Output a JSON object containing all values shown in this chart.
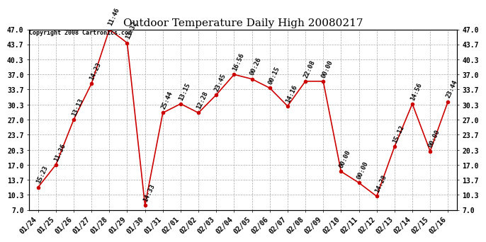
{
  "title": "Outdoor Temperature Daily High 20080217",
  "copyright": "Copyright 2008 Cartronics.com",
  "x_labels": [
    "01/24",
    "01/25",
    "01/26",
    "01/27",
    "01/28",
    "01/29",
    "01/30",
    "01/31",
    "02/01",
    "02/02",
    "02/03",
    "02/04",
    "02/05",
    "02/06",
    "02/07",
    "02/08",
    "02/09",
    "02/10",
    "02/11",
    "02/12",
    "02/13",
    "02/14",
    "02/15",
    "02/16"
  ],
  "y_values": [
    12.0,
    17.0,
    27.0,
    35.0,
    47.0,
    44.0,
    8.0,
    28.5,
    30.5,
    28.5,
    32.5,
    37.0,
    36.0,
    34.0,
    30.0,
    35.5,
    35.5,
    15.5,
    13.0,
    10.0,
    21.0,
    30.5,
    20.0,
    31.0
  ],
  "point_labels": [
    "15:23",
    "11:36",
    "13:13",
    "14:23",
    "11:46",
    "13:32",
    "14:33",
    "25:44",
    "13:15",
    "12:28",
    "23:45",
    "16:56",
    "00:26",
    "00:15",
    "14:16",
    "22:08",
    "00:00",
    "00:00",
    "00:00",
    "14:28",
    "15:12",
    "14:56",
    "00:00",
    "23:44"
  ],
  "line_color": "#cc0000",
  "marker_color": "#cc0000",
  "bg_color": "#ffffff",
  "grid_color": "#aaaaaa",
  "ylim": [
    7.0,
    47.0
  ],
  "yticks": [
    7.0,
    10.3,
    13.7,
    17.0,
    20.3,
    23.7,
    27.0,
    30.3,
    33.7,
    37.0,
    40.3,
    43.7,
    47.0
  ],
  "title_fontsize": 11,
  "label_fontsize": 6.5,
  "tick_fontsize": 7,
  "copyright_fontsize": 6
}
